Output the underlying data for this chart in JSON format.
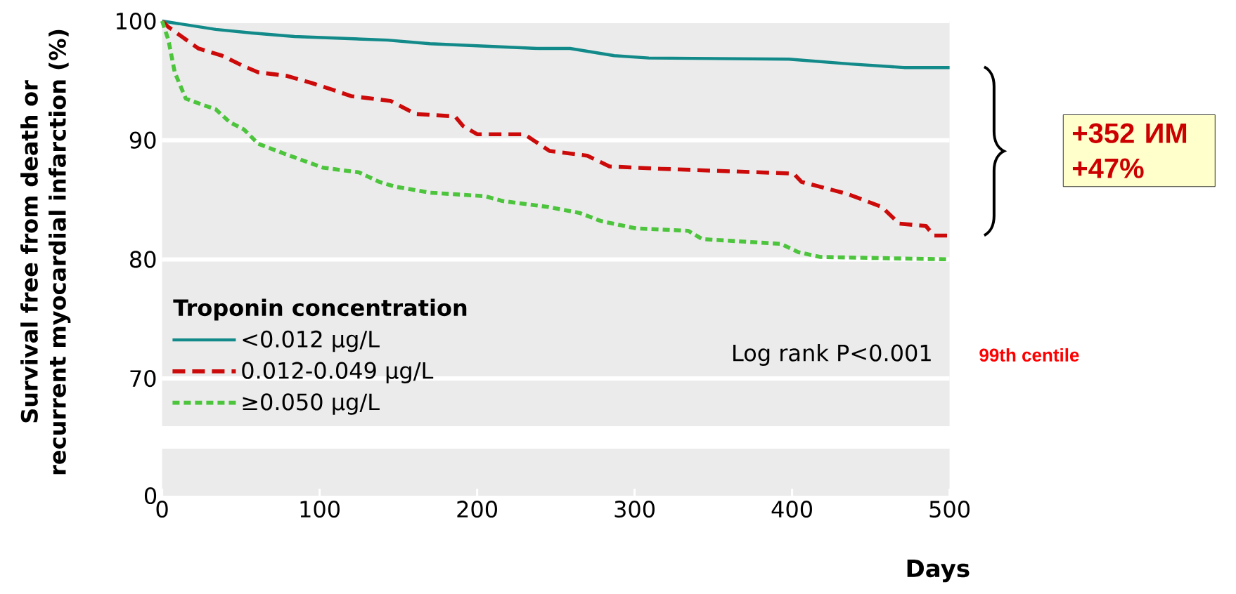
{
  "chart_data": {
    "type": "line",
    "xlabel": "Days",
    "ylabel": "Survival free from death or recurrent myocardial infarction (%)",
    "xlim": [
      0,
      500
    ],
    "xticks": [
      0,
      100,
      200,
      300,
      400,
      500
    ],
    "ylim": [
      66,
      100
    ],
    "yticks": [
      70,
      80,
      90,
      100
    ],
    "grid": "y",
    "legend": "bottom left",
    "legend_title": "Troponin concentration",
    "annotations": [
      "Log rank P<0.001",
      "99th centile",
      "+352 ИМ +47%",
      "0"
    ],
    "series": [
      {
        "name": "<0.012 μg/L",
        "color": "#138a8a",
        "line_style": "solid",
        "x": [
          0,
          34,
          57,
          84,
          143,
          170,
          239,
          259,
          287,
          309,
          398,
          437,
          471,
          500
        ],
        "values": [
          100,
          99.3,
          99.0,
          98.7,
          98.4,
          98.1,
          97.7,
          97.7,
          97.1,
          96.9,
          96.8,
          96.4,
          96.1,
          96.1
        ]
      },
      {
        "name": "0.012-0.049 μg/L",
        "color": "#cc0a0a",
        "line_style": "dashed",
        "x": [
          0,
          4,
          23,
          38,
          52,
          61,
          79,
          95,
          109,
          120,
          145,
          161,
          186,
          191,
          200,
          230,
          246,
          270,
          284,
          317,
          401,
          406,
          435,
          457,
          468,
          485,
          490,
          500
        ],
        "values": [
          100,
          99.5,
          97.7,
          97.1,
          96.2,
          95.7,
          95.4,
          94.8,
          94.2,
          93.7,
          93.3,
          92.2,
          92.0,
          91.2,
          90.5,
          90.5,
          89.1,
          88.7,
          87.8,
          87.6,
          87.2,
          86.5,
          85.5,
          84.4,
          83.0,
          82.8,
          82.0,
          82.0
        ]
      },
      {
        "name": "≥0.050 μg/L",
        "color": "#4cc43c",
        "line_style": "dotted",
        "x": [
          0,
          4,
          8,
          15,
          25,
          34,
          43,
          52,
          61,
          79,
          102,
          125,
          138,
          148,
          170,
          205,
          216,
          245,
          265,
          279,
          301,
          334,
          343,
          393,
          404,
          418,
          500
        ],
        "values": [
          100,
          98.4,
          95.7,
          93.5,
          93.0,
          92.6,
          91.5,
          90.9,
          89.7,
          88.8,
          87.7,
          87.3,
          86.5,
          86.1,
          85.6,
          85.3,
          84.9,
          84.4,
          83.9,
          83.2,
          82.6,
          82.4,
          81.7,
          81.3,
          80.6,
          80.2,
          80.0
        ]
      }
    ]
  }
}
